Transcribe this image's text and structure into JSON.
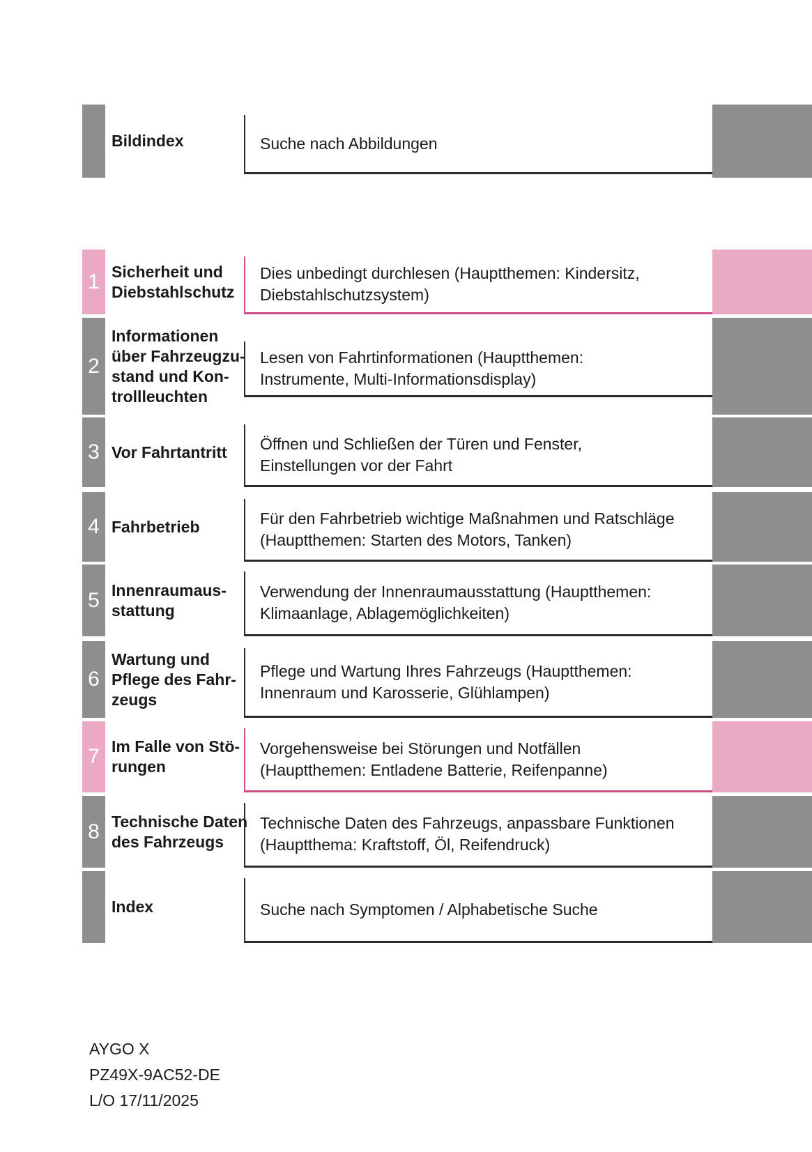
{
  "colors": {
    "tab_gray": "#8e8e8e",
    "tab_pink": "#ebaac4",
    "border_pink": "#cc4d85",
    "border_dark": "#2a2a2a",
    "text": "#1a1a1a"
  },
  "toc": {
    "rows": [
      {
        "id": "bildindex",
        "number": "",
        "accent": "gray",
        "label": "Bildindex",
        "description": "Suche nach Abbildungen"
      },
      {
        "id": "1",
        "number": "1",
        "accent": "pink",
        "label": "Sicherheit und\nDiebstahlschutz",
        "description": "Dies unbedingt durchlesen (Hauptthemen: Kindersitz,\nDiebstahlschutzsystem)"
      },
      {
        "id": "2",
        "number": "2",
        "accent": "gray",
        "label": "Informationen\nüber Fahrzeugzu-\nstand und Kon-\ntrollleuchten",
        "description": "Lesen von Fahrtinformationen (Hauptthemen:\nInstrumente, Multi-Informationsdisplay)"
      },
      {
        "id": "3",
        "number": "3",
        "accent": "gray",
        "label": "Vor Fahrtantritt",
        "description": "Öffnen und Schließen der Türen und Fenster,\nEinstellungen vor der Fahrt"
      },
      {
        "id": "4",
        "number": "4",
        "accent": "gray",
        "label": "Fahrbetrieb",
        "description": "Für den Fahrbetrieb wichtige Maßnahmen und Ratschläge\n(Hauptthemen: Starten des Motors, Tanken)"
      },
      {
        "id": "5",
        "number": "5",
        "accent": "gray",
        "label": "Innenraumaus-\nstattung",
        "description": "Verwendung der Innenraumausstattung (Hauptthemen:\nKlimaanlage, Ablagemöglichkeiten)"
      },
      {
        "id": "6",
        "number": "6",
        "accent": "gray",
        "label": "Wartung und\nPflege des Fahr-\nzeugs",
        "description": "Pflege und Wartung Ihres Fahrzeugs (Hauptthemen:\nInnenraum und Karosserie, Glühlampen)"
      },
      {
        "id": "7",
        "number": "7",
        "accent": "pink",
        "label": "Im Falle von Stö-\nrungen",
        "description": "Vorgehensweise bei Störungen und Notfällen\n(Hauptthemen: Entladene Batterie, Reifenpanne)"
      },
      {
        "id": "8",
        "number": "8",
        "accent": "gray",
        "label": "Technische Daten\ndes Fahrzeugs",
        "description": "Technische Daten des Fahrzeugs, anpassbare Funktionen\n(Hauptthema: Kraftstoff, Öl, Reifendruck)"
      },
      {
        "id": "index",
        "number": "",
        "accent": "gray",
        "label": "Index",
        "description": "Suche nach Symptomen / Alphabetische Suche"
      }
    ]
  },
  "footer": {
    "text": "AYGO X\nPZ49X-9AC52-DE\nL/O 17/11/2025"
  }
}
